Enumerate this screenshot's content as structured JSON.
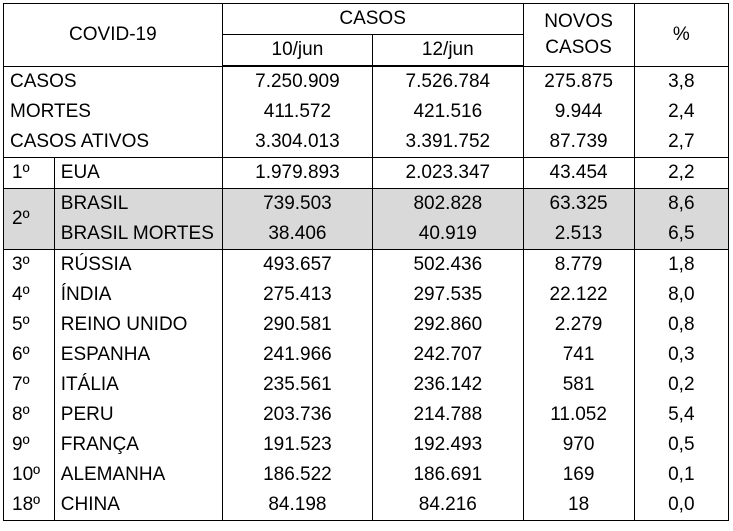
{
  "header": {
    "title": "COVID-19",
    "casos": "CASOS",
    "date1": "10/jun",
    "date2": "12/jun",
    "novos_line1": "NOVOS",
    "novos_line2": "CASOS",
    "pct": "%"
  },
  "summary": [
    {
      "label": "CASOS",
      "v1": "7.250.909",
      "v2": "7.526.784",
      "novos": "275.875",
      "pct": "3,8"
    },
    {
      "label": "MORTES",
      "v1": "411.572",
      "v2": "421.516",
      "novos": "9.944",
      "pct": "2,4"
    },
    {
      "label": "CASOS ATIVOS",
      "v1": "3.304.013",
      "v2": "3.391.752",
      "novos": "87.739",
      "pct": "2,7"
    }
  ],
  "countries": [
    {
      "rank": "1º",
      "name": "EUA",
      "v1": "1.979.893",
      "v2": "2.023.347",
      "novos": "43.454",
      "pct": "2,2"
    },
    {
      "rank": "2º",
      "name": "BRASIL",
      "v1": "739.503",
      "v2": "802.828",
      "novos": "63.325",
      "pct": "8,6"
    },
    {
      "rank": "",
      "name": "BRASIL MORTES",
      "v1": "38.406",
      "v2": "40.919",
      "novos": "2.513",
      "pct": "6,5"
    },
    {
      "rank": "3º",
      "name": "RÚSSIA",
      "v1": "493.657",
      "v2": "502.436",
      "novos": "8.779",
      "pct": "1,8"
    },
    {
      "rank": "4º",
      "name": "ÍNDIA",
      "v1": "275.413",
      "v2": "297.535",
      "novos": "22.122",
      "pct": "8,0"
    },
    {
      "rank": "5º",
      "name": "REINO UNIDO",
      "v1": "290.581",
      "v2": "292.860",
      "novos": "2.279",
      "pct": "0,8"
    },
    {
      "rank": "6º",
      "name": "ESPANHA",
      "v1": "241.966",
      "v2": "242.707",
      "novos": "741",
      "pct": "0,3"
    },
    {
      "rank": "7º",
      "name": "ITÁLIA",
      "v1": "235.561",
      "v2": "236.142",
      "novos": "581",
      "pct": "0,2"
    },
    {
      "rank": "8º",
      "name": "PERU",
      "v1": "203.736",
      "v2": "214.788",
      "novos": "11.052",
      "pct": "5,4"
    },
    {
      "rank": "9º",
      "name": "FRANÇA",
      "v1": "191.523",
      "v2": "192.493",
      "novos": "970",
      "pct": "0,5"
    },
    {
      "rank": "10º",
      "name": "ALEMANHA",
      "v1": "186.522",
      "v2": "186.691",
      "novos": "169",
      "pct": "0,1"
    },
    {
      "rank": "18º",
      "name": "CHINA",
      "v1": "84.198",
      "v2": "84.216",
      "novos": "18",
      "pct": "0,0"
    }
  ],
  "colors": {
    "highlight": "#d9d9d9",
    "border": "#000000"
  }
}
